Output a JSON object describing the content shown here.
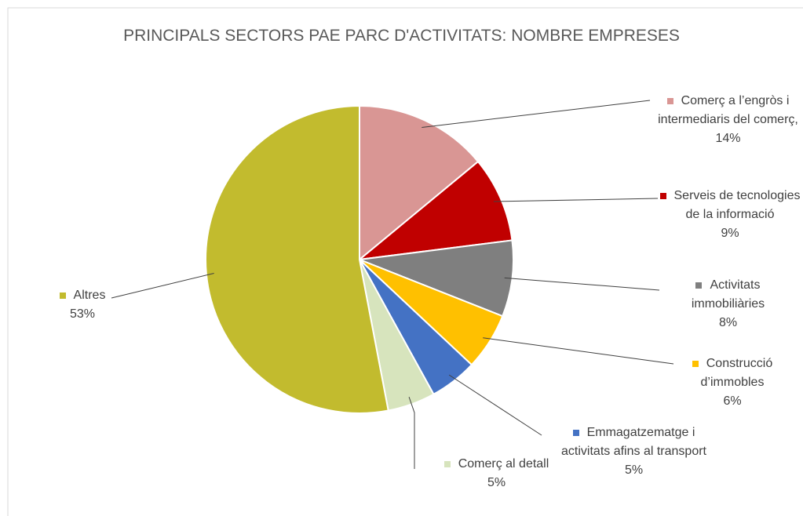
{
  "chart_data": {
    "type": "pie",
    "title": "PRINCIPALS SECTORS PAE PARC D'ACTIVITATS: NOMBRE EMPRESES",
    "categories": [
      "Comerç a l’engròs i intermediaris del comerç,",
      "Serveis de tecnologies de la informació",
      "Activitats immobiliàries",
      "Construcció d’immobles",
      "Emmagatzematge i activitats afins al transport",
      "Comerç al detall",
      "Altres"
    ],
    "values": [
      14,
      9,
      8,
      6,
      5,
      5,
      53
    ],
    "value_labels": [
      "14%",
      "9%",
      "8%",
      "6%",
      "5%",
      "5%",
      "53%"
    ],
    "colors": [
      "#d99694",
      "#c00000",
      "#7f7f7f",
      "#ffc000",
      "#4472c4",
      "#d7e4bd",
      "#c2bb2e"
    ]
  }
}
